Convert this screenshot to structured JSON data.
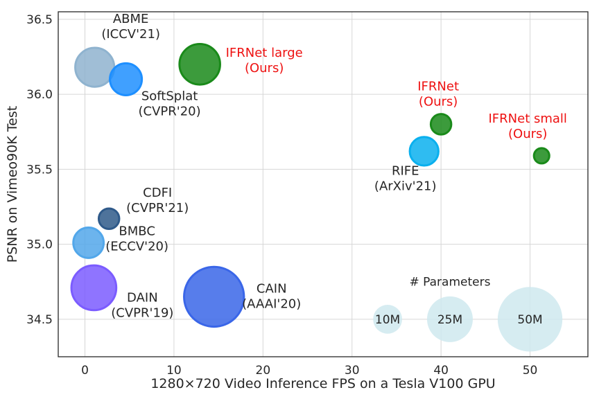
{
  "chart_data": {
    "type": "scatter",
    "xlabel": "1280×720 Video Inference FPS on a Tesla V100 GPU",
    "ylabel": "PSNR on Vimeo90K Test",
    "xlim": [
      -3,
      56.5
    ],
    "ylim": [
      34.25,
      36.55
    ],
    "xticks": [
      0,
      10,
      20,
      30,
      40,
      50
    ],
    "yticks": [
      34.5,
      35.0,
      35.5,
      36.0,
      36.5
    ],
    "xtick_labels": [
      "0",
      "10",
      "20",
      "30",
      "40",
      "50"
    ],
    "ytick_labels": [
      "34.5",
      "35.0",
      "35.5",
      "36.0",
      "36.5"
    ],
    "grid": true,
    "points": [
      {
        "name": "ABME",
        "lines": [
          "ABME",
          "(ICCV'21)"
        ],
        "x": 1.1,
        "y": 36.18,
        "params_m": 18.1,
        "color": "#8fb3cf",
        "label_color": "#262626"
      },
      {
        "name": "SoftSplat",
        "lines": [
          "SoftSplat",
          "(CVPR'20)"
        ],
        "x": 4.6,
        "y": 36.1,
        "params_m": 12.2,
        "color": "#1e8fff",
        "label_color": "#262626"
      },
      {
        "name": "IFRNet large",
        "lines": [
          "IFRNet large",
          "(Ours)"
        ],
        "x": 12.9,
        "y": 36.2,
        "params_m": 19.7,
        "color": "#1a8a1a",
        "label_color": "#ee1111"
      },
      {
        "name": "IFRNet",
        "lines": [
          "IFRNet",
          "(Ours)"
        ],
        "x": 40.0,
        "y": 35.8,
        "params_m": 5.0,
        "color": "#1a8a1a",
        "label_color": "#ee1111"
      },
      {
        "name": "IFRNet small",
        "lines": [
          "IFRNet small",
          "(Ours)"
        ],
        "x": 51.3,
        "y": 35.59,
        "params_m": 2.8,
        "color": "#1a8a1a",
        "label_color": "#ee1111"
      },
      {
        "name": "RIFE",
        "lines": [
          "RIFE",
          "(ArXiv'21)"
        ],
        "x": 38.1,
        "y": 35.62,
        "params_m": 9.8,
        "color": "#0ab0ee",
        "label_color": "#262626"
      },
      {
        "name": "CDFI",
        "lines": [
          "CDFI",
          "(CVPR'21)"
        ],
        "x": 2.7,
        "y": 35.17,
        "params_m": 5.0,
        "color": "#2f5a8a",
        "label_color": "#262626"
      },
      {
        "name": "BMBC",
        "lines": [
          "BMBC",
          "(ECCV'20)"
        ],
        "x": 0.4,
        "y": 35.01,
        "params_m": 11.0,
        "color": "#52a7ea",
        "label_color": "#262626"
      },
      {
        "name": "DAIN",
        "lines": [
          "DAIN",
          "(CVPR'19)"
        ],
        "x": 1.0,
        "y": 34.71,
        "params_m": 24.0,
        "color": "#7b5cff",
        "label_color": "#262626"
      },
      {
        "name": "CAIN",
        "lines": [
          "CAIN",
          "(AAAI'20)"
        ],
        "x": 14.5,
        "y": 34.65,
        "params_m": 42.8,
        "color": "#3a66e8",
        "label_color": "#262626"
      }
    ],
    "size_legend": {
      "title": "# Parameters",
      "color": "#cfe9ee",
      "entries": [
        {
          "label": "10M",
          "params_m": 10,
          "x": 34.0,
          "y": 34.5
        },
        {
          "label": "25M",
          "params_m": 25,
          "x": 41.0,
          "y": 34.5
        },
        {
          "label": "50M",
          "params_m": 50,
          "x": 50.0,
          "y": 34.5
        }
      ]
    }
  }
}
